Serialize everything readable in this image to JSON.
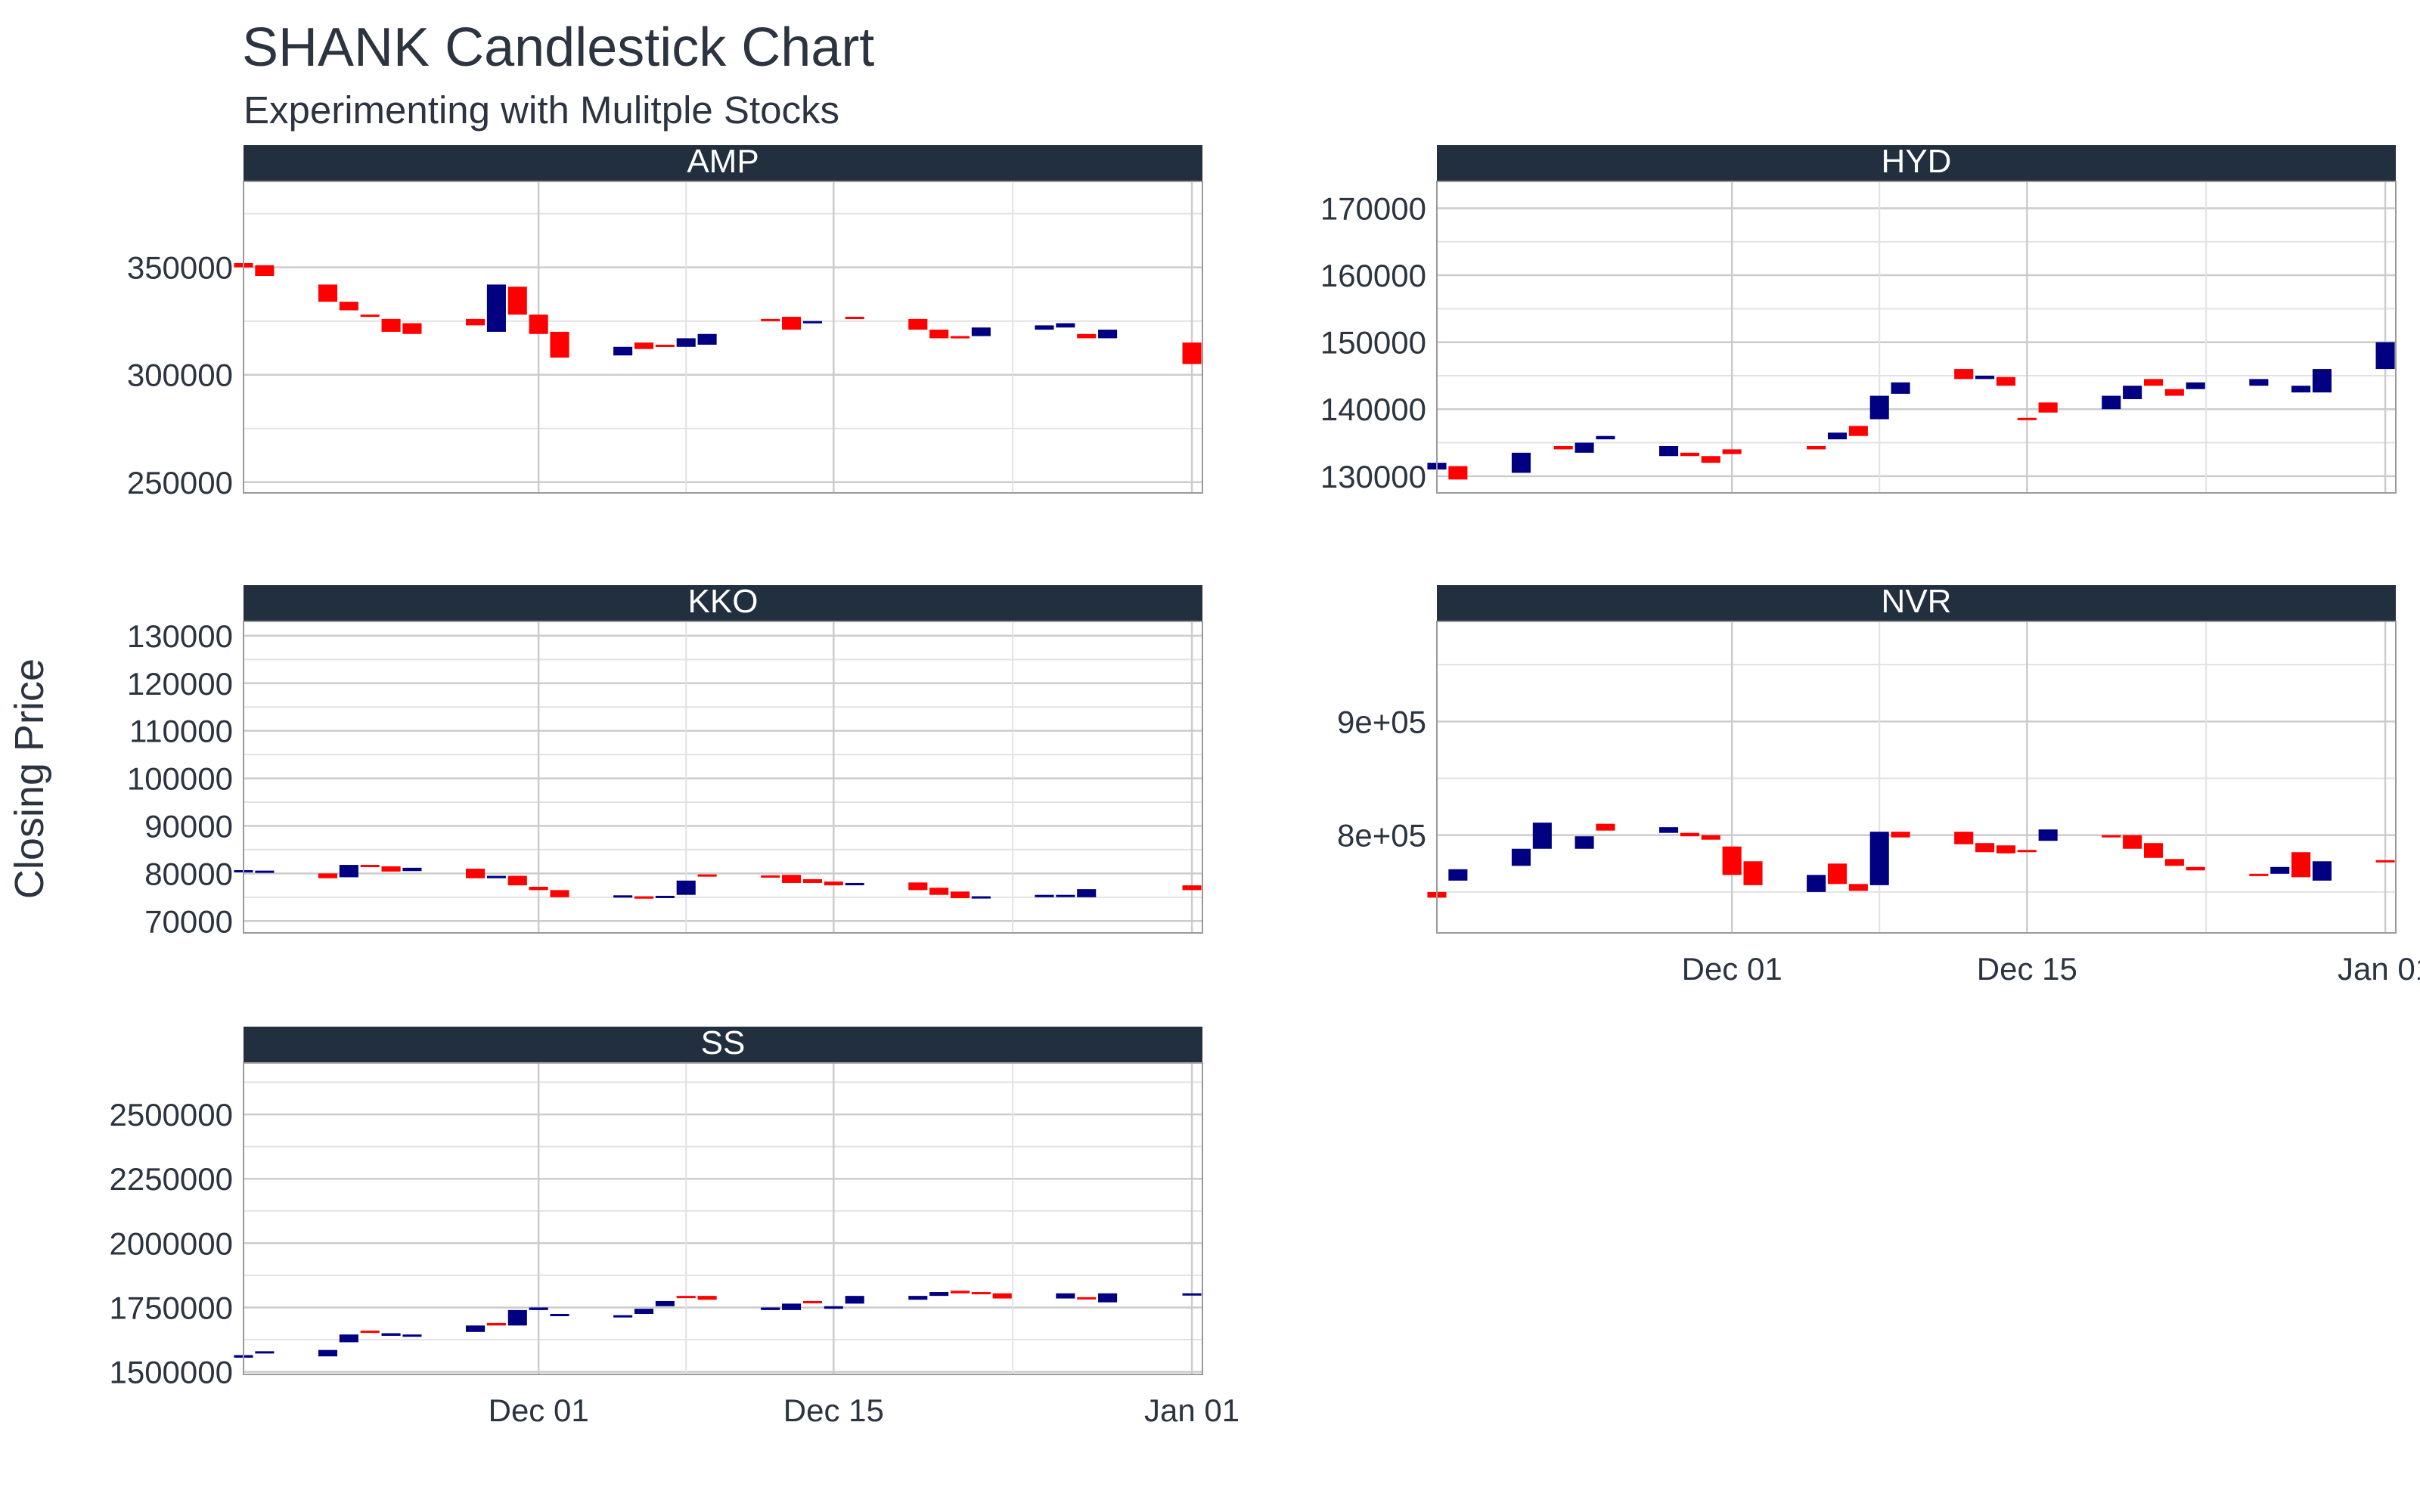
{
  "chart_data": {
    "type": "candlestick",
    "title": "SHANK Candlestick Chart",
    "subtitle": "Experimenting with Mulitple Stocks",
    "xlabel": "",
    "ylabel": "Closing Price",
    "x_ticks": [
      "Dec 01",
      "Dec 15",
      "Jan 01"
    ],
    "x_range": [
      -14,
      31.5
    ],
    "grid": true,
    "legend": "none",
    "colors": {
      "up": "#000080",
      "down": "#ff0000",
      "strip": "#222f3e",
      "grid": "#cccccc"
    },
    "panels": [
      {
        "name": "AMP",
        "ylim": [
          245000,
          390000
        ],
        "y_ticks": [
          250000,
          300000,
          350000
        ],
        "y_tick_labels": [
          "250000",
          "300000",
          "350000"
        ],
        "candles": [
          [
            -14,
            352000,
            350000
          ],
          [
            -13,
            351000,
            346000
          ],
          [
            -10,
            342000,
            334000
          ],
          [
            -9,
            334000,
            330000
          ],
          [
            -8,
            328000,
            327000
          ],
          [
            -7,
            326000,
            320000
          ],
          [
            -6,
            324000,
            319000
          ],
          [
            -3,
            326000,
            323000
          ],
          [
            -2,
            320000,
            342000
          ],
          [
            -1,
            341000,
            328000
          ],
          [
            0,
            328000,
            319000
          ],
          [
            1,
            320000,
            308000
          ],
          [
            4,
            309000,
            313000
          ],
          [
            5,
            315000,
            312000
          ],
          [
            6,
            314000,
            313000
          ],
          [
            7,
            313000,
            317000
          ],
          [
            8,
            314000,
            319000
          ],
          [
            11,
            326000,
            325000
          ],
          [
            12,
            327000,
            321000
          ],
          [
            13,
            324000,
            325000
          ],
          [
            15,
            327000,
            326000
          ],
          [
            18,
            326000,
            321000
          ],
          [
            19,
            321000,
            317000
          ],
          [
            20,
            318000,
            317000
          ],
          [
            21,
            318000,
            322000
          ],
          [
            24,
            321000,
            323000
          ],
          [
            25,
            322000,
            324000
          ],
          [
            26,
            319000,
            317000
          ],
          [
            27,
            317000,
            321000
          ],
          [
            31,
            315000,
            305000
          ]
        ]
      },
      {
        "name": "HYD",
        "ylim": [
          127500,
          174000
        ],
        "y_ticks": [
          130000,
          140000,
          150000,
          160000,
          170000
        ],
        "y_tick_labels": [
          "130000",
          "140000",
          "150000",
          "160000",
          "170000"
        ],
        "candles": [
          [
            -14,
            131000,
            132000
          ],
          [
            -13,
            131500,
            129500
          ],
          [
            -10,
            130500,
            133500
          ],
          [
            -8,
            134500,
            134000
          ],
          [
            -7,
            133500,
            135000
          ],
          [
            -6,
            135500,
            136000
          ],
          [
            -3,
            133000,
            134500
          ],
          [
            -2,
            133500,
            133000
          ],
          [
            -1,
            133000,
            132000
          ],
          [
            0,
            134000,
            133300
          ],
          [
            4,
            134500,
            134000
          ],
          [
            5,
            135500,
            136500
          ],
          [
            6,
            137500,
            136000
          ],
          [
            7,
            138500,
            142000
          ],
          [
            8,
            142300,
            144000
          ],
          [
            11,
            146000,
            144500
          ],
          [
            12,
            144500,
            145000
          ],
          [
            13,
            144800,
            143500
          ],
          [
            14,
            138700,
            138500
          ],
          [
            15,
            141000,
            139500
          ],
          [
            18,
            140000,
            142000
          ],
          [
            19,
            141500,
            143500
          ],
          [
            20,
            144500,
            143500
          ],
          [
            21,
            143000,
            142000
          ],
          [
            22,
            143000,
            144000
          ],
          [
            25,
            143500,
            144500
          ],
          [
            27,
            142500,
            143500
          ],
          [
            28,
            142500,
            146000
          ],
          [
            31,
            146000,
            150000
          ]
        ]
      },
      {
        "name": "KKO",
        "ylim": [
          67500,
          133000
        ],
        "y_ticks": [
          70000,
          80000,
          90000,
          100000,
          110000,
          120000,
          130000
        ],
        "y_tick_labels": [
          "70000",
          "80000",
          "90000",
          "100000",
          "110000",
          "120000",
          "130000"
        ],
        "candles": [
          [
            -14,
            80500,
            80700
          ],
          [
            -13,
            80600,
            80600
          ],
          [
            -10,
            80000,
            79000
          ],
          [
            -9,
            79200,
            81800
          ],
          [
            -8,
            81800,
            81500
          ],
          [
            -7,
            81500,
            80400
          ],
          [
            -6,
            80500,
            81200
          ],
          [
            -3,
            81000,
            79000
          ],
          [
            -2,
            79000,
            79500
          ],
          [
            -1,
            79500,
            77500
          ],
          [
            0,
            77200,
            76500
          ],
          [
            1,
            76500,
            75000
          ],
          [
            4,
            75000,
            75400
          ],
          [
            5,
            75200,
            74700
          ],
          [
            6,
            75000,
            75300
          ],
          [
            7,
            75500,
            78500
          ],
          [
            8,
            79800,
            79500
          ],
          [
            11,
            79600,
            79400
          ],
          [
            12,
            79700,
            78000
          ],
          [
            13,
            78800,
            78000
          ],
          [
            14,
            78300,
            77500
          ],
          [
            15,
            77800,
            78000
          ],
          [
            18,
            78100,
            76500
          ],
          [
            19,
            77000,
            75500
          ],
          [
            20,
            76200,
            74800
          ],
          [
            21,
            75000,
            75200
          ],
          [
            24,
            75000,
            75500
          ],
          [
            25,
            75200,
            75500
          ],
          [
            26,
            75000,
            76700
          ],
          [
            31,
            77500,
            76500
          ]
        ]
      },
      {
        "name": "NVR",
        "ylim": [
          714000,
          988000
        ],
        "y_ticks": [
          800000,
          900000
        ],
        "y_tick_labels": [
          "8e+05",
          "9e+05"
        ],
        "candles": [
          [
            -14,
            750000,
            745000
          ],
          [
            -13,
            760000,
            770000
          ],
          [
            -10,
            773000,
            788000
          ],
          [
            -9,
            788000,
            811000
          ],
          [
            -7,
            788000,
            799000
          ],
          [
            -6,
            810000,
            804000
          ],
          [
            -3,
            802000,
            807000
          ],
          [
            -2,
            802000,
            799000
          ],
          [
            -1,
            800000,
            796000
          ],
          [
            0,
            790000,
            765000
          ],
          [
            1,
            777000,
            756000
          ],
          [
            4,
            750000,
            765000
          ],
          [
            5,
            775000,
            757000
          ],
          [
            6,
            757000,
            751000
          ],
          [
            7,
            756000,
            803000
          ],
          [
            8,
            803000,
            798000
          ],
          [
            11,
            803000,
            792000
          ],
          [
            12,
            793000,
            785000
          ],
          [
            13,
            791000,
            784000
          ],
          [
            14,
            787000,
            786000
          ],
          [
            15,
            795000,
            805000
          ],
          [
            18,
            800000,
            798000
          ],
          [
            19,
            800000,
            788000
          ],
          [
            20,
            793000,
            780000
          ],
          [
            21,
            779000,
            773000
          ],
          [
            22,
            772000,
            769000
          ],
          [
            25,
            766000,
            764000
          ],
          [
            26,
            766000,
            772000
          ],
          [
            27,
            785000,
            763000
          ],
          [
            28,
            760000,
            777000
          ],
          [
            31,
            778000,
            777000
          ]
        ]
      },
      {
        "name": "SS",
        "ylim": [
          1490000,
          2700000
        ],
        "y_ticks": [
          1500000,
          1750000,
          2000000,
          2250000,
          2500000
        ],
        "y_tick_labels": [
          "1500000",
          "1750000",
          "2000000",
          "2250000",
          "2500000"
        ],
        "candles": [
          [
            -14,
            1555000,
            1565000
          ],
          [
            -13,
            1575000,
            1580000
          ],
          [
            -10,
            1560000,
            1585000
          ],
          [
            -9,
            1615000,
            1645000
          ],
          [
            -8,
            1660000,
            1655000
          ],
          [
            -7,
            1640000,
            1650000
          ],
          [
            -6,
            1645000,
            1645000
          ],
          [
            -3,
            1655000,
            1680000
          ],
          [
            -2,
            1690000,
            1680000
          ],
          [
            -1,
            1680000,
            1740000
          ],
          [
            0,
            1740000,
            1750000
          ],
          [
            1,
            1720000,
            1725000
          ],
          [
            4,
            1715000,
            1720000
          ],
          [
            5,
            1725000,
            1745000
          ],
          [
            6,
            1755000,
            1775000
          ],
          [
            7,
            1795000,
            1790000
          ],
          [
            8,
            1795000,
            1780000
          ],
          [
            11,
            1740000,
            1750000
          ],
          [
            12,
            1740000,
            1765000
          ],
          [
            13,
            1775000,
            1770000
          ],
          [
            14,
            1745000,
            1755000
          ],
          [
            15,
            1765000,
            1795000
          ],
          [
            18,
            1780000,
            1795000
          ],
          [
            19,
            1795000,
            1810000
          ],
          [
            20,
            1815000,
            1805000
          ],
          [
            21,
            1810000,
            1805000
          ],
          [
            22,
            1805000,
            1785000
          ],
          [
            25,
            1785000,
            1805000
          ],
          [
            26,
            1790000,
            1785000
          ],
          [
            27,
            1770000,
            1805000
          ],
          [
            31,
            1800000,
            1805000
          ]
        ]
      }
    ]
  }
}
